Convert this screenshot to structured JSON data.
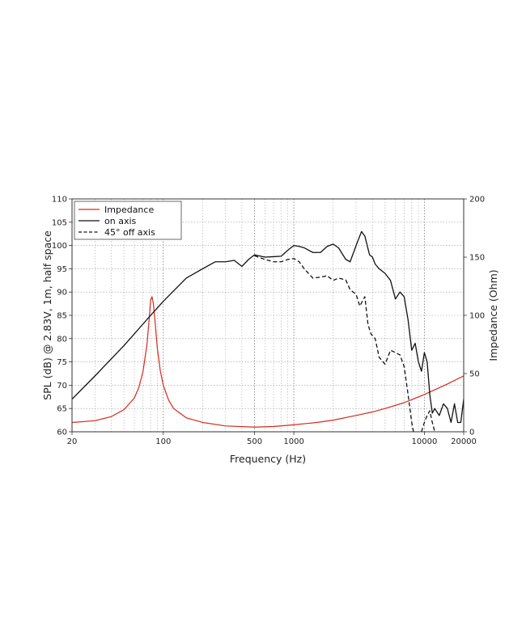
{
  "chart_data": {
    "type": "line",
    "xlabel": "Frequency (Hz)",
    "ylabel_left": "SPL (dB) @ 2.83V, 1m, half space",
    "ylabel_right": "Impedance (Ohm)",
    "x_scale": "log",
    "xlim": [
      20,
      20000
    ],
    "ylim_left": [
      60,
      110
    ],
    "ylim_right": [
      0,
      200
    ],
    "x_tick_labels": [
      {
        "value": 20,
        "label": "20"
      },
      {
        "value": 100,
        "label": "100"
      },
      {
        "value": 500,
        "label": "500"
      },
      {
        "value": 1000,
        "label": "1000"
      },
      {
        "value": 10000,
        "label": "10000"
      },
      {
        "value": 20000,
        "label": "20000"
      }
    ],
    "y_left_ticks": [
      60,
      65,
      70,
      75,
      80,
      85,
      90,
      95,
      100,
      105,
      110
    ],
    "y_right_ticks": [
      0,
      50,
      100,
      150,
      200
    ],
    "grid": true,
    "legend_position": "top-left",
    "series": [
      {
        "name": "Impedance",
        "axis": "right",
        "color": "#d42a1e",
        "style": "solid",
        "points": [
          [
            20,
            8
          ],
          [
            30,
            9.5
          ],
          [
            40,
            13
          ],
          [
            50,
            19
          ],
          [
            60,
            29
          ],
          [
            65,
            38
          ],
          [
            70,
            52
          ],
          [
            75,
            75
          ],
          [
            78,
            97
          ],
          [
            80,
            113
          ],
          [
            82,
            116
          ],
          [
            84,
            110
          ],
          [
            86,
            98
          ],
          [
            90,
            72
          ],
          [
            95,
            52
          ],
          [
            100,
            40
          ],
          [
            110,
            27
          ],
          [
            120,
            20
          ],
          [
            150,
            12
          ],
          [
            200,
            8
          ],
          [
            300,
            5
          ],
          [
            500,
            4
          ],
          [
            700,
            4.5
          ],
          [
            1000,
            6
          ],
          [
            1500,
            8
          ],
          [
            2000,
            10
          ],
          [
            3000,
            14
          ],
          [
            4000,
            17
          ],
          [
            5000,
            20
          ],
          [
            7000,
            25
          ],
          [
            10000,
            32
          ],
          [
            15000,
            41
          ],
          [
            20000,
            48
          ]
        ]
      },
      {
        "name": "on axis",
        "axis": "left",
        "color": "#111111",
        "style": "solid",
        "points": [
          [
            20,
            67
          ],
          [
            30,
            72
          ],
          [
            50,
            78.5
          ],
          [
            80,
            85
          ],
          [
            100,
            88
          ],
          [
            150,
            93
          ],
          [
            200,
            95
          ],
          [
            250,
            96.5
          ],
          [
            300,
            96.5
          ],
          [
            350,
            96.8
          ],
          [
            400,
            95.5
          ],
          [
            450,
            97
          ],
          [
            500,
            98
          ],
          [
            600,
            97.5
          ],
          [
            700,
            97.6
          ],
          [
            800,
            97.7
          ],
          [
            900,
            99
          ],
          [
            1000,
            100
          ],
          [
            1100,
            99.8
          ],
          [
            1200,
            99.5
          ],
          [
            1400,
            98.5
          ],
          [
            1600,
            98.5
          ],
          [
            1800,
            99.8
          ],
          [
            2000,
            100.3
          ],
          [
            2200,
            99.5
          ],
          [
            2500,
            97
          ],
          [
            2700,
            96.5
          ],
          [
            3000,
            100
          ],
          [
            3300,
            103
          ],
          [
            3500,
            102
          ],
          [
            3800,
            98
          ],
          [
            4000,
            97.5
          ],
          [
            4200,
            96
          ],
          [
            4500,
            95
          ],
          [
            5000,
            94
          ],
          [
            5500,
            92.5
          ],
          [
            6000,
            88.5
          ],
          [
            6500,
            90
          ],
          [
            7000,
            89
          ],
          [
            7500,
            84
          ],
          [
            8000,
            77.5
          ],
          [
            8500,
            79
          ],
          [
            9000,
            75
          ],
          [
            9500,
            73
          ],
          [
            10000,
            77
          ],
          [
            10500,
            75
          ],
          [
            11000,
            68
          ],
          [
            11500,
            64
          ],
          [
            12000,
            65
          ],
          [
            13000,
            63.5
          ],
          [
            14000,
            66
          ],
          [
            15000,
            65
          ],
          [
            16000,
            62
          ],
          [
            17000,
            66
          ],
          [
            18000,
            62
          ],
          [
            19000,
            62
          ],
          [
            20000,
            67
          ]
        ]
      },
      {
        "name": "45° off axis",
        "axis": "left",
        "color": "#111111",
        "style": "dashed",
        "points": [
          [
            500,
            97.8
          ],
          [
            600,
            97
          ],
          [
            700,
            96.5
          ],
          [
            800,
            96.5
          ],
          [
            900,
            97
          ],
          [
            1000,
            97.2
          ],
          [
            1100,
            96.5
          ],
          [
            1200,
            95
          ],
          [
            1400,
            93
          ],
          [
            1600,
            93.2
          ],
          [
            1800,
            93.5
          ],
          [
            2000,
            92.5
          ],
          [
            2200,
            93
          ],
          [
            2500,
            92.6
          ],
          [
            2700,
            90.5
          ],
          [
            3000,
            89.5
          ],
          [
            3200,
            87
          ],
          [
            3500,
            89
          ],
          [
            3700,
            83
          ],
          [
            3900,
            81
          ],
          [
            4200,
            80
          ],
          [
            4500,
            76
          ],
          [
            5000,
            74.5
          ],
          [
            5500,
            77.5
          ],
          [
            6000,
            77
          ],
          [
            6500,
            76.5
          ],
          [
            7000,
            74
          ],
          [
            7500,
            68
          ],
          [
            8000,
            62
          ],
          [
            8500,
            58
          ]
        ]
      },
      {
        "name": "45° off axis",
        "axis": "left",
        "color": "#111111",
        "style": "dashed",
        "points": [
          [
            9500,
            60
          ],
          [
            10000,
            62
          ],
          [
            10500,
            63.5
          ],
          [
            11000,
            64.5
          ],
          [
            11500,
            62
          ],
          [
            12000,
            60
          ]
        ]
      }
    ]
  }
}
